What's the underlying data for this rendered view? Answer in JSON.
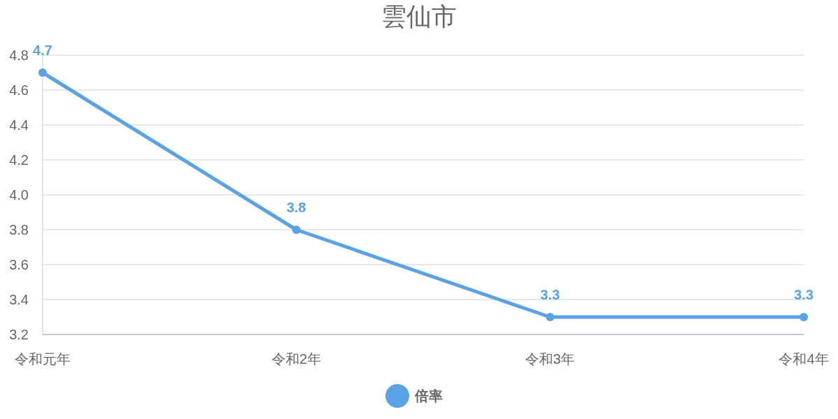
{
  "chart_data": {
    "type": "line",
    "title": "雲仙市",
    "categories": [
      "令和元年",
      "令和2年",
      "令和3年",
      "令和4年"
    ],
    "series": [
      {
        "name": "倍率",
        "color": "#5aa2e6",
        "values": [
          4.7,
          3.8,
          3.3,
          3.3
        ]
      }
    ],
    "ylim": [
      3.2,
      4.8
    ],
    "yticks": [
      "3.2",
      "3.4",
      "3.6",
      "3.8",
      "4.0",
      "4.2",
      "4.4",
      "4.6",
      "4.8"
    ],
    "grid": "y",
    "legend": "bottom",
    "marker": "circle",
    "line_style": "solid",
    "data_labels": true
  }
}
